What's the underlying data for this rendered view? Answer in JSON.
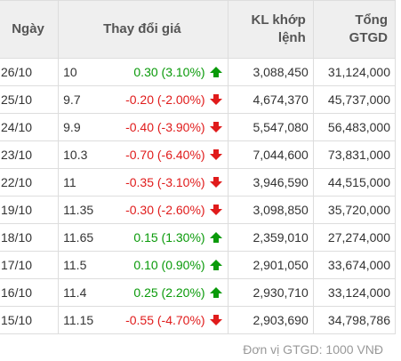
{
  "table": {
    "headers": {
      "date": "Ngày",
      "price_change": "Thay đổi giá",
      "volume_line1": "KL khớp",
      "volume_line2": "lệnh",
      "value_line1": "Tổng",
      "value_line2": "GTGD"
    },
    "rows": [
      {
        "date": "26/10",
        "close": "10",
        "change": "0.30 (3.10%)",
        "direction": "up",
        "volume": "3,088,450",
        "value": "31,124,000"
      },
      {
        "date": "25/10",
        "close": "9.7",
        "change": "-0.20 (-2.00%)",
        "direction": "down",
        "volume": "4,674,370",
        "value": "45,737,000"
      },
      {
        "date": "24/10",
        "close": "9.9",
        "change": "-0.40 (-3.90%)",
        "direction": "down",
        "volume": "5,547,080",
        "value": "56,483,000"
      },
      {
        "date": "23/10",
        "close": "10.3",
        "change": "-0.70 (-6.40%)",
        "direction": "down",
        "volume": "7,044,600",
        "value": "73,831,000"
      },
      {
        "date": "22/10",
        "close": "11",
        "change": "-0.35 (-3.10%)",
        "direction": "down",
        "volume": "3,946,590",
        "value": "44,515,000"
      },
      {
        "date": "19/10",
        "close": "11.35",
        "change": "-0.30 (-2.60%)",
        "direction": "down",
        "volume": "3,098,850",
        "value": "35,720,000"
      },
      {
        "date": "18/10",
        "close": "11.65",
        "change": "0.15 (1.30%)",
        "direction": "up",
        "volume": "2,359,010",
        "value": "27,274,000"
      },
      {
        "date": "17/10",
        "close": "11.5",
        "change": "0.10 (0.90%)",
        "direction": "up",
        "volume": "2,901,050",
        "value": "33,674,000"
      },
      {
        "date": "16/10",
        "close": "11.4",
        "change": "0.25 (2.20%)",
        "direction": "up",
        "volume": "2,930,710",
        "value": "33,124,000"
      },
      {
        "date": "15/10",
        "close": "11.15",
        "change": "-0.55 (-4.70%)",
        "direction": "down",
        "volume": "2,903,690",
        "value": "34,798,786"
      }
    ]
  },
  "footer": {
    "unit_note": "Đơn vị GTGD: 1000 VNĐ"
  },
  "colors": {
    "up": "#0a9a0a",
    "down": "#e01b1b",
    "header_bg": "#efefef",
    "border": "#dddddd"
  },
  "icons": {
    "up": "arrow-up-icon",
    "down": "arrow-down-icon"
  }
}
